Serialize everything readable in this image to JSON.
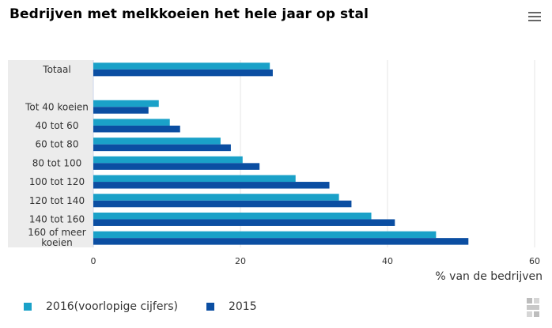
{
  "title": "Bedrijven met melkkoeien het hele jaar op stal",
  "menu_icon": "hamburger-menu-icon",
  "logo_icon": "cbs-logo-icon",
  "colors": {
    "series_2016": "#1aa1c8",
    "series_2015": "#0b4ea2",
    "category_band": "#ececec",
    "grid": "#e6e6e6",
    "axis": "#ccd6eb"
  },
  "chart_data": {
    "type": "bar",
    "orientation": "horizontal",
    "categories": [
      "Totaal",
      "",
      "Tot 40 koeien",
      "40 tot 60",
      "60 tot 80",
      "80 tot 100",
      "100 tot 120",
      "120 tot 140",
      "140 tot 160",
      "160 of meer koeien"
    ],
    "series": [
      {
        "name": "2016(voorlopige cijfers)",
        "color": "#1aa1c8",
        "values": [
          24,
          null,
          8.9,
          10.4,
          17.3,
          20.3,
          27.5,
          33.4,
          37.8,
          46.6
        ]
      },
      {
        "name": "2015",
        "color": "#0b4ea2",
        "values": [
          24.4,
          null,
          7.5,
          11.8,
          18.7,
          22.6,
          32.1,
          35.1,
          41,
          51
        ]
      }
    ],
    "xlabel": "% van de bedrijven",
    "ylabel": "",
    "xlim": [
      0,
      60
    ],
    "xticks": [
      0,
      20,
      40,
      60
    ],
    "grid": true,
    "legend_position": "bottom-left"
  }
}
